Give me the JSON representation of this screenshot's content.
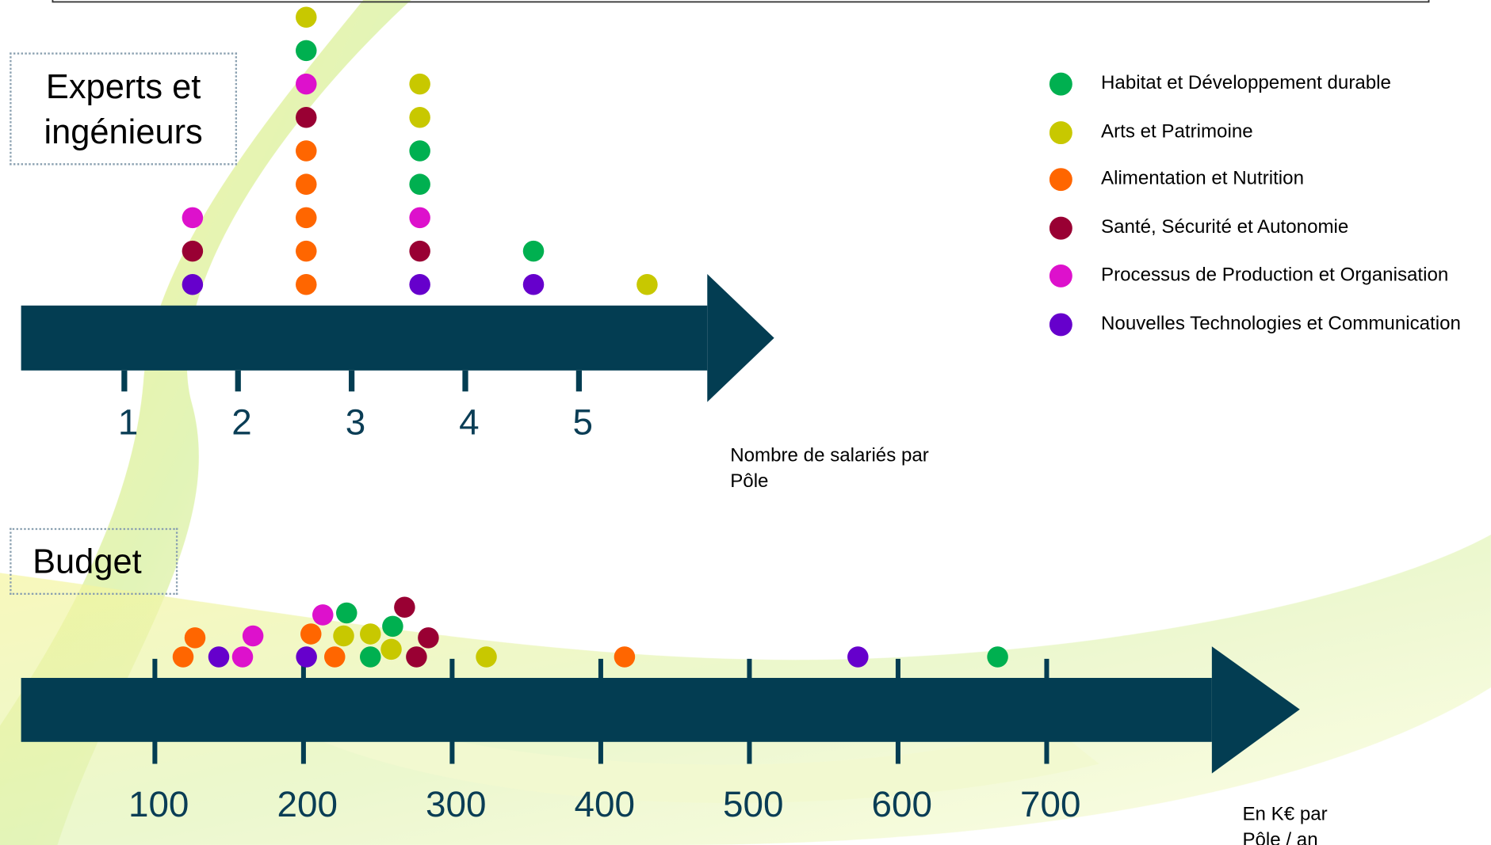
{
  "chart_data": [
    {
      "type": "dot",
      "title": "Experts et ingénieurs",
      "x_label": "Nombre de salariés par Pôle",
      "xlim": [
        0.1,
        6.6
      ],
      "xticks": [
        1,
        2,
        3,
        4,
        5
      ],
      "series": [
        {
          "name": "Habitat et Développement durable",
          "color": "#00b050",
          "values": [
            2.6,
            3.6,
            3.6,
            4.6
          ]
        },
        {
          "name": "Arts et Patrimoine",
          "color": "#c8c800",
          "values": [
            2.6,
            3.6,
            3.6,
            5.6
          ]
        },
        {
          "name": "Alimentation et Nutrition",
          "color": "#ff6600",
          "values": [
            2.6,
            2.6,
            2.6,
            2.6,
            2.6
          ]
        },
        {
          "name": "Santé, Sécurité et Autonomie",
          "color": "#990033",
          "values": [
            1.6,
            2.6,
            3.6
          ]
        },
        {
          "name": "Processus de Production et Organisation",
          "color": "#dd11cc",
          "values": [
            1.6,
            2.6,
            3.6
          ]
        },
        {
          "name": "Nouvelles Technologies et Communication",
          "color": "#6600cc",
          "values": [
            1.6,
            3.6,
            4.6
          ]
        }
      ]
    },
    {
      "type": "dot",
      "title": "Budget",
      "x_label": "En K€ par Pôle / an",
      "xlim": [
        10,
        860
      ],
      "xticks": [
        100,
        200,
        300,
        400,
        500,
        600,
        700
      ],
      "series": [
        {
          "name": "Habitat et Développement durable",
          "color": "#00b050",
          "values": [
            229,
            245,
            260,
            667
          ]
        },
        {
          "name": "Arts et Patrimoine",
          "color": "#c8c800",
          "values": [
            227,
            245,
            259,
            323
          ]
        },
        {
          "name": "Alimentation et Nutrition",
          "color": "#ff6600",
          "values": [
            119,
            127,
            205,
            221,
            416
          ]
        },
        {
          "name": "Santé, Sécurité et Autonomie",
          "color": "#990033",
          "values": [
            268,
            276,
            284
          ]
        },
        {
          "name": "Processus de Production et Organisation",
          "color": "#dd11cc",
          "values": [
            159,
            166,
            213
          ]
        },
        {
          "name": "Nouvelles Technologies et Communication",
          "color": "#6600cc",
          "values": [
            143,
            202,
            573
          ]
        }
      ]
    }
  ]
}
